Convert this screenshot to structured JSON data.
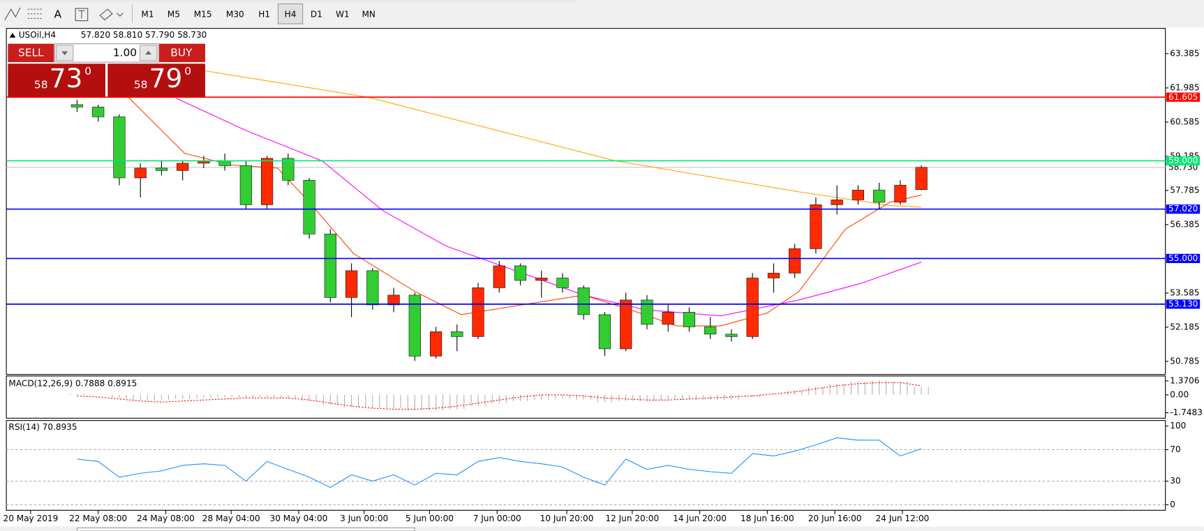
{
  "toolbar": {
    "tools": [
      "A"
    ],
    "timeframes": [
      "M1",
      "M5",
      "M15",
      "M30",
      "H1",
      "H4",
      "D1",
      "W1",
      "MN"
    ],
    "active": "H4"
  },
  "trade_panel": {
    "sell": "SELL",
    "buy": "BUY",
    "volume": "1.00",
    "bid_big": "58",
    "bid_main": "73",
    "bid_sup": "0",
    "ask_big": "58",
    "ask_main": "79",
    "ask_sup": "0"
  },
  "chart_data": [
    {
      "type": "candlestick",
      "title": "USOil,H4",
      "ohlc_label": "57.820 58.810 57.790 58.730",
      "up_color": "#ff2a00",
      "down_color": "#32cd32",
      "xlim": [
        -3.35,
        51.56
      ],
      "ylim": [
        50.25,
        64.39
      ],
      "yticks": [
        50.785,
        52.185,
        53.585,
        56.385,
        57.785,
        59.185,
        60.585,
        61.985,
        63.385
      ],
      "xticks": [
        {
          "value": -2.2,
          "label": "20 May 2019"
        },
        {
          "value": 1.0,
          "label": "22 May 08:00"
        },
        {
          "value": 4.2,
          "label": "24 May 08:00"
        },
        {
          "value": 7.3,
          "label": "28 May 04:00"
        },
        {
          "value": 10.5,
          "label": "30 May 04:00"
        },
        {
          "value": 13.6,
          "label": "3 Jun 00:00"
        },
        {
          "value": 16.7,
          "label": "5 Jun 00:00"
        },
        {
          "value": 19.9,
          "label": "7 Jun 00:00"
        },
        {
          "value": 23.2,
          "label": "10 Jun 20:00"
        },
        {
          "value": 26.3,
          "label": "12 Jun 20:00"
        },
        {
          "value": 29.5,
          "label": "14 Jun 20:00"
        },
        {
          "value": 32.7,
          "label": "18 Jun 16:00"
        },
        {
          "value": 35.9,
          "label": "20 Jun 16:00"
        },
        {
          "value": 39.1,
          "label": "24 Jun 12:00"
        }
      ],
      "open": [
        61.3,
        61.2,
        60.8,
        58.3,
        58.7,
        58.6,
        58.9,
        59.0,
        58.8,
        57.2,
        59.1,
        58.2,
        56.0,
        53.4,
        54.5,
        53.1,
        53.5,
        51.0,
        52.0,
        51.8,
        53.8,
        54.7,
        54.1,
        54.2,
        53.8,
        52.7,
        51.3,
        53.3,
        52.3,
        52.8,
        52.2,
        51.9,
        51.8,
        54.2,
        54.4,
        55.4,
        57.2,
        57.4,
        57.8,
        57.3,
        57.82
      ],
      "high": [
        61.5,
        61.3,
        60.9,
        58.9,
        59.0,
        59.0,
        59.2,
        59.3,
        59.0,
        59.2,
        59.3,
        58.3,
        56.2,
        54.8,
        54.6,
        53.8,
        53.6,
        52.2,
        52.3,
        54.0,
        54.9,
        54.8,
        54.5,
        54.4,
        53.9,
        52.8,
        53.6,
        53.5,
        53.1,
        53.0,
        52.6,
        52.1,
        54.4,
        54.8,
        55.6,
        57.5,
        58.0,
        58.0,
        58.1,
        58.2,
        58.81
      ],
      "low": [
        61.0,
        60.6,
        58.0,
        57.5,
        58.4,
        58.2,
        58.7,
        58.6,
        57.0,
        57.0,
        58.0,
        55.8,
        53.2,
        52.6,
        52.9,
        52.8,
        50.8,
        50.9,
        51.2,
        51.7,
        53.6,
        53.9,
        53.4,
        53.6,
        52.5,
        51.0,
        51.2,
        52.1,
        52.0,
        52.0,
        51.7,
        51.6,
        51.7,
        53.6,
        54.2,
        55.2,
        56.8,
        57.2,
        57.0,
        57.2,
        57.79
      ],
      "close": [
        61.2,
        60.8,
        58.3,
        58.7,
        58.6,
        58.9,
        59.0,
        58.8,
        57.2,
        59.1,
        58.2,
        56.0,
        53.4,
        54.5,
        53.1,
        53.5,
        51.0,
        52.0,
        51.8,
        53.8,
        54.7,
        54.1,
        54.2,
        53.8,
        52.7,
        51.3,
        53.3,
        52.3,
        52.8,
        52.2,
        51.9,
        51.8,
        54.2,
        54.4,
        55.4,
        57.2,
        57.4,
        57.8,
        57.3,
        58.0,
        58.73
      ],
      "series": [
        {
          "color": "#ffa500",
          "x": [
            5.1,
            13.8,
            25.5,
            34.2,
            38.5,
            40
          ],
          "values": [
            62.82,
            61.6,
            59.0,
            57.73,
            57.17,
            57.1
          ]
        },
        {
          "color": "#ff4500",
          "x": [
            2.2,
            5.1,
            7.3,
            9.5,
            10.9,
            13.1,
            16,
            18.2,
            21.8,
            24,
            26.2,
            28.4,
            30.5,
            32.7,
            34.2,
            36.4,
            38.5,
            40
          ],
          "values": [
            61.8,
            59.3,
            58.83,
            58.7,
            57.4,
            55.2,
            53.65,
            52.7,
            53.2,
            53.5,
            52.9,
            52.24,
            52.24,
            52.77,
            53.65,
            56.2,
            57.3,
            57.6
          ]
        },
        {
          "color": "#ff00ff",
          "x": [
            4.7,
            8,
            11.6,
            14.5,
            17.5,
            21.1,
            24,
            26.9,
            30.5,
            34.2,
            37.1,
            40
          ],
          "values": [
            61.56,
            60.24,
            59.0,
            56.95,
            55.5,
            54.4,
            53.5,
            52.9,
            52.65,
            53.3,
            53.97,
            54.85
          ]
        }
      ],
      "levels": [
        {
          "value": 61.605,
          "label": "61.605",
          "color": "#ff0000"
        },
        {
          "value": 59,
          "label": "59.000",
          "color": "#00e676"
        },
        {
          "value": 57.02,
          "label": "57.020",
          "color": "#0000ff"
        },
        {
          "value": 55,
          "label": "55.000",
          "color": "#0000ff"
        },
        {
          "value": 53.13,
          "label": "53.130",
          "color": "#0000ff"
        }
      ],
      "current": {
        "value": 58.73,
        "label": "58.730",
        "color": "#c0c0c0"
      }
    },
    {
      "type": "macd",
      "title": "MACD(12,26,9) 0.7888 0.8915",
      "xlim": [
        -3.35,
        51.56
      ],
      "ylim": [
        -2.28,
        1.85
      ],
      "yticks": [
        -1.7483,
        {
          "value": 0,
          "label": "0.00"
        },
        1.3706
      ],
      "histogram_color": "#b0b0b0",
      "signal_color": "#ff0000",
      "histogram": [
        0.1,
        0.0,
        -0.3,
        -0.5,
        -0.5,
        -0.4,
        -0.3,
        -0.2,
        -0.3,
        -0.2,
        -0.3,
        -0.6,
        -1.0,
        -1.2,
        -1.3,
        -1.3,
        -1.5,
        -1.5,
        -1.4,
        -1.1,
        -0.8,
        -0.6,
        -0.5,
        -0.4,
        -0.5,
        -0.7,
        -0.6,
        -0.6,
        -0.5,
        -0.5,
        -0.5,
        -0.5,
        -0.2,
        0.1,
        0.4,
        0.8,
        1.1,
        1.3,
        1.4,
        1.3,
        0.79
      ],
      "signal": [
        -0.1,
        -0.2,
        -0.4,
        -0.6,
        -0.7,
        -0.6,
        -0.5,
        -0.4,
        -0.3,
        -0.3,
        -0.3,
        -0.5,
        -0.8,
        -1.1,
        -1.3,
        -1.4,
        -1.4,
        -1.3,
        -1.1,
        -0.8,
        -0.5,
        -0.2,
        0.0,
        0.0,
        -0.1,
        -0.3,
        -0.4,
        -0.5,
        -0.5,
        -0.4,
        -0.3,
        -0.2,
        -0.1,
        0.1,
        0.3,
        0.6,
        0.9,
        1.1,
        1.2,
        1.2,
        0.89
      ]
    },
    {
      "type": "line",
      "title": "RSI(14) 70.8935",
      "xlim": [
        -3.35,
        51.56
      ],
      "ylim": [
        -7,
        107
      ],
      "yticks": [
        0,
        30,
        70,
        100
      ],
      "grid": true,
      "color": "#1e90ff",
      "values": [
        58,
        55,
        35,
        40,
        43,
        50,
        52,
        50,
        30,
        55,
        45,
        35,
        22,
        38,
        30,
        38,
        25,
        40,
        38,
        55,
        60,
        55,
        52,
        48,
        35,
        25,
        58,
        45,
        50,
        45,
        42,
        40,
        65,
        62,
        68,
        76,
        85,
        82,
        82,
        62,
        71
      ]
    }
  ]
}
